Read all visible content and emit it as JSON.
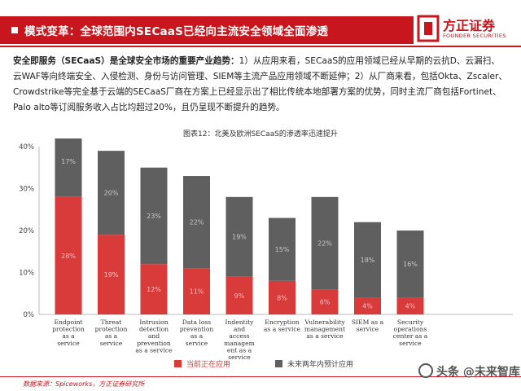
{
  "header": {
    "title": "模式变革：全球范围内SECaaS已经向主流安全领域全面渗透",
    "logo_name": "方正证券",
    "logo_sub": "FOUNDER SECURITIES"
  },
  "body": {
    "lead_bold": "安全即服务（SECaaS）是全球安全市场的重要产业趋势：",
    "text": "1）从应用来看，SECaaS的应用领域已经从早期的云抗D、云漏扫、云WAF等向终端安全、入侵检测、身份与访问管理、SIEM等主流产品应用领域不断延伸；2）从厂商来看，包括Okta、Zscaler、Crowdstrike等完全基于云端的SECaaS厂商在方案上已经显示出了相比传统本地部署方案的优势，同时主流厂商包括Fortinet、Palo alto等订阅服务收入占比均超过20%，且仍呈现不断提升的趋势。"
  },
  "figure_title": "图表12：北美及欧洲SECaaS的渗透率迅速提升",
  "colors": {
    "brand": "#c8161e",
    "current": "#d93a3a",
    "future": "#5f5f5f"
  },
  "chart_data": {
    "type": "bar",
    "stacked": true,
    "categories": [
      [
        "Endpoint",
        "protection",
        "as a",
        "service"
      ],
      [
        "Threat",
        "protection",
        "as a",
        "service"
      ],
      [
        "Intrusion",
        "detection",
        "and",
        "prevention",
        "as a service"
      ],
      [
        "Data loss",
        "prevention",
        "as a",
        "service"
      ],
      [
        "Indentity",
        "and",
        "access",
        "managem",
        "ent as a",
        "service"
      ],
      [
        "Encryption",
        "as a service"
      ],
      [
        "Vulnerability",
        "management",
        "as a service"
      ],
      [
        "SIEM as a",
        "service"
      ],
      [
        "Security",
        "operations",
        "center as a",
        "service"
      ]
    ],
    "series": [
      {
        "name": "当前正在应用",
        "values": [
          28,
          19,
          12,
          11,
          9,
          8,
          6,
          4,
          4
        ],
        "labels": [
          "28%",
          "19%",
          "12%",
          "11%",
          "9%",
          "8%",
          "6%",
          "4%",
          "4%"
        ]
      },
      {
        "name": "未来两年内预计应用",
        "values": [
          17,
          20,
          23,
          22,
          19,
          15,
          22,
          18,
          16
        ],
        "labels": [
          "17%",
          "20%",
          "23%",
          "22%",
          "19%",
          "15%",
          "22%",
          "18%",
          "16%"
        ]
      }
    ],
    "yticks": [
      "0%",
      "10%",
      "20%",
      "30%",
      "40%"
    ],
    "ylim": [
      0,
      40
    ],
    "legend_position": "bottom"
  },
  "footer": {
    "source": "数据来源：Spiceworks，方正证券研究所"
  },
  "watermark": "头条 @未来智库"
}
